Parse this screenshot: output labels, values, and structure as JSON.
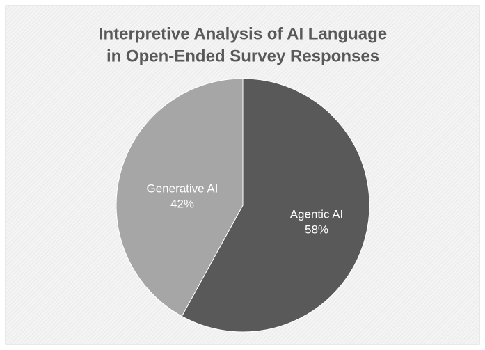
{
  "chart_data": {
    "type": "pie",
    "title": [
      "Interpretive Analysis of AI Language",
      "in Open-Ended Survey Responses"
    ],
    "categories": [
      "Agentic AI",
      "Generative AI"
    ],
    "values": [
      58,
      42
    ],
    "value_labels": [
      "58%",
      "42%"
    ],
    "colors": [
      "#595959",
      "#a6a6a6"
    ]
  }
}
